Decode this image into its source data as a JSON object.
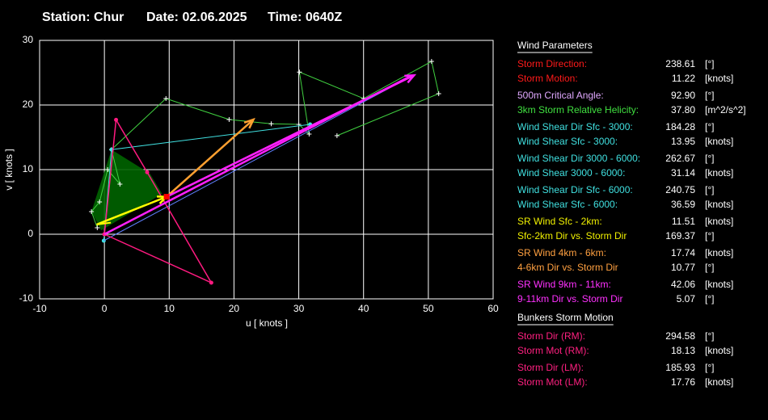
{
  "header": {
    "station": "Station: Chur",
    "date": "Date: 02.06.2025",
    "time": "Time: 0640Z"
  },
  "chart_data": {
    "type": "line",
    "xlabel": "u  [ knots ]",
    "ylabel": "v  [ knots ]",
    "xlim": [
      -10,
      60
    ],
    "ylim": [
      -10,
      30
    ],
    "xticks": [
      -10,
      0,
      10,
      20,
      30,
      40,
      50,
      60
    ],
    "yticks": [
      -10,
      0,
      10,
      20,
      30
    ],
    "grid": true,
    "area": {
      "color": "#006400",
      "x": [
        -2,
        1.1,
        7,
        8.9,
        -0.5
      ],
      "values": [
        3.5,
        13.1,
        9.4,
        6.25,
        0.6
      ]
    },
    "series": [
      {
        "color": "#40d040",
        "width": 1,
        "markers": "cross",
        "x": [
          -1.1,
          -2,
          -0.75,
          0.5,
          2.4,
          1.1,
          9.5,
          19.25,
          25.75,
          30,
          31.6,
          30.1,
          40,
          50.5,
          51.6,
          35.9
        ],
        "values": [
          1,
          3.5,
          5,
          10,
          7.75,
          13.1,
          21,
          17.75,
          17.1,
          17,
          15.5,
          25.1,
          21,
          26.75,
          21.75,
          15.25
        ]
      },
      {
        "color": "#40e0e0",
        "width": 1,
        "markers": "dot",
        "x": [
          -0.1,
          1.1,
          31.75
        ],
        "values": [
          -1,
          13.1,
          17
        ]
      },
      {
        "color": "#6080ff",
        "width": 1,
        "x": [
          -0.1,
          47.5
        ],
        "values": [
          -1,
          24.5
        ]
      },
      {
        "color": "#ff1a80",
        "width": 1.5,
        "markers": "dot",
        "x": [
          0,
          1.8,
          6.6,
          16.5,
          0
        ],
        "values": [
          0,
          17.7,
          9.6,
          -7.5,
          0
        ]
      },
      {
        "color": "#ff20ff",
        "width": 2.5,
        "x": [
          0,
          47.5
        ],
        "values": [
          0,
          24.6
        ]
      },
      {
        "color": "#ffff00",
        "width": 2,
        "x": [
          -1.2,
          1
        ],
        "values": [
          1.5,
          1.8
        ]
      },
      {
        "color": "#ffff00",
        "width": 2.5,
        "arrow": true,
        "x": [
          -1.2,
          9.6
        ],
        "values": [
          1.5,
          5.8
        ]
      },
      {
        "color": "#ffa030",
        "width": 2.5,
        "arrow": true,
        "x": [
          9.6,
          23
        ],
        "values": [
          5.8,
          17.75
        ]
      },
      {
        "color": "#ff20ff",
        "width": 2.5,
        "arrow": true,
        "x": [
          9.6,
          47.8
        ],
        "values": [
          5.8,
          24.6
        ]
      }
    ],
    "storm_motion": {
      "color": "#ff0000",
      "x": 9.6,
      "value": 5.8
    }
  },
  "panel": [
    {
      "title": "Wind Parameters",
      "rows": [
        {
          "label": "Storm Direction:",
          "value": "238.61",
          "unit": "[°]",
          "color": "#ff1a1a"
        },
        {
          "label": "Storm Motion:",
          "value": "11.22",
          "unit": "[knots]",
          "color": "#ff1a1a"
        },
        {
          "label": "500m Critical Angle:",
          "value": "92.90",
          "unit": "[°]",
          "color": "#e0a8ff"
        },
        {
          "label": "3km Storm Relative Helicity:",
          "value": "37.80",
          "unit": "[m^2/s^2]",
          "color": "#40e040"
        },
        {
          "label": "Wind Shear Dir Sfc - 3000:",
          "value": "184.28",
          "unit": "[°]",
          "color": "#40e0e0"
        },
        {
          "label": "Wind Shear Sfc - 3000:",
          "value": "13.95",
          "unit": "[knots]",
          "color": "#40e0e0"
        },
        {
          "label": "Wind Shear Dir 3000 - 6000:",
          "value": "262.67",
          "unit": "[°]",
          "color": "#40e0e0"
        },
        {
          "label": "Wind Shear 3000 - 6000:",
          "value": "31.14",
          "unit": "[knots]",
          "color": "#40e0e0"
        },
        {
          "label": "Wind Shear Dir Sfc - 6000:",
          "value": "240.75",
          "unit": "[°]",
          "color": "#40e0e0"
        },
        {
          "label": "Wind Shear Sfc - 6000:",
          "value": "36.59",
          "unit": "[knots]",
          "color": "#40e0e0"
        },
        {
          "label": "SR Wind Sfc - 2km:",
          "value": "11.51",
          "unit": "[knots]",
          "color": "#f0f000"
        },
        {
          "label": "Sfc-2km Dir vs. Storm Dir",
          "value": "169.37",
          "unit": "[°]",
          "color": "#f0f000"
        },
        {
          "label": "SR Wind 4km - 6km:",
          "value": "17.74",
          "unit": "[knots]",
          "color": "#ffa040"
        },
        {
          "label": "4-6km Dir vs. Storm Dir",
          "value": "10.77",
          "unit": "[°]",
          "color": "#ffa040"
        },
        {
          "label": "SR Wind 9km - 11km:",
          "value": "42.06",
          "unit": "[knots]",
          "color": "#ff30ff"
        },
        {
          "label": "9-11km Dir vs. Storm Dir",
          "value": "5.07",
          "unit": "[°]",
          "color": "#ff30ff"
        }
      ]
    },
    {
      "title": "Bunkers Storm Motion",
      "rows": [
        {
          "label": "Storm Dir (RM):",
          "value": "294.58",
          "unit": "[°]",
          "color": "#ff2080"
        },
        {
          "label": "Storm Mot (RM):",
          "value": "18.13",
          "unit": "[knots]",
          "color": "#ff2080"
        },
        {
          "label": "Storm Dir (LM):",
          "value": "185.93",
          "unit": "[°]",
          "color": "#ff2080"
        },
        {
          "label": "Storm Mot (LM):",
          "value": "17.76",
          "unit": "[knots]",
          "color": "#ff2080"
        }
      ]
    }
  ]
}
